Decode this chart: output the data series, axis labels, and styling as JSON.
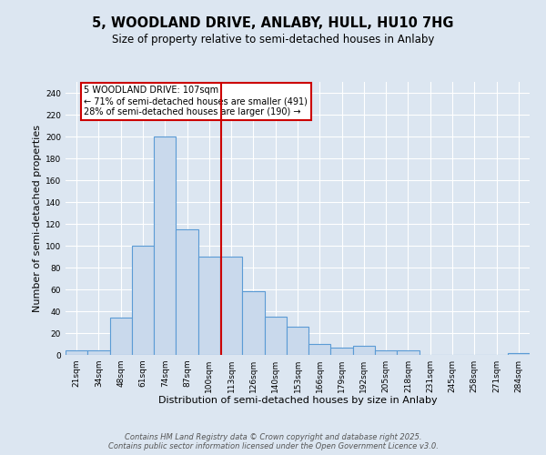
{
  "title_line1": "5, WOODLAND DRIVE, ANLABY, HULL, HU10 7HG",
  "title_line2": "Size of property relative to semi-detached houses in Anlaby",
  "xlabel": "Distribution of semi-detached houses by size in Anlaby",
  "ylabel": "Number of semi-detached properties",
  "categories": [
    "21sqm",
    "34sqm",
    "48sqm",
    "61sqm",
    "74sqm",
    "87sqm",
    "100sqm",
    "113sqm",
    "126sqm",
    "140sqm",
    "153sqm",
    "166sqm",
    "179sqm",
    "192sqm",
    "205sqm",
    "218sqm",
    "231sqm",
    "245sqm",
    "258sqm",
    "271sqm",
    "284sqm"
  ],
  "values": [
    4,
    4,
    34,
    100,
    200,
    115,
    90,
    90,
    58,
    35,
    26,
    10,
    7,
    8,
    4,
    4,
    0,
    0,
    0,
    0,
    2
  ],
  "bar_color": "#c9d9ec",
  "bar_edge_color": "#5b9bd5",
  "vline_x": 6.54,
  "vline_color": "#cc0000",
  "annotation_text": "5 WOODLAND DRIVE: 107sqm\n← 71% of semi-detached houses are smaller (491)\n28% of semi-detached houses are larger (190) →",
  "annotation_box_color": "#ffffff",
  "annotation_box_edge_color": "#cc0000",
  "ylim": [
    0,
    250
  ],
  "yticks": [
    0,
    20,
    40,
    60,
    80,
    100,
    120,
    140,
    160,
    180,
    200,
    220,
    240
  ],
  "background_color": "#dce6f1",
  "plot_background_color": "#dce6f1",
  "grid_color": "#ffffff",
  "footer_line1": "Contains HM Land Registry data © Crown copyright and database right 2025.",
  "footer_line2": "Contains public sector information licensed under the Open Government Licence v3.0.",
  "title_fontsize": 10.5,
  "subtitle_fontsize": 8.5,
  "axis_label_fontsize": 8,
  "tick_fontsize": 6.5,
  "annotation_fontsize": 7,
  "footer_fontsize": 6
}
